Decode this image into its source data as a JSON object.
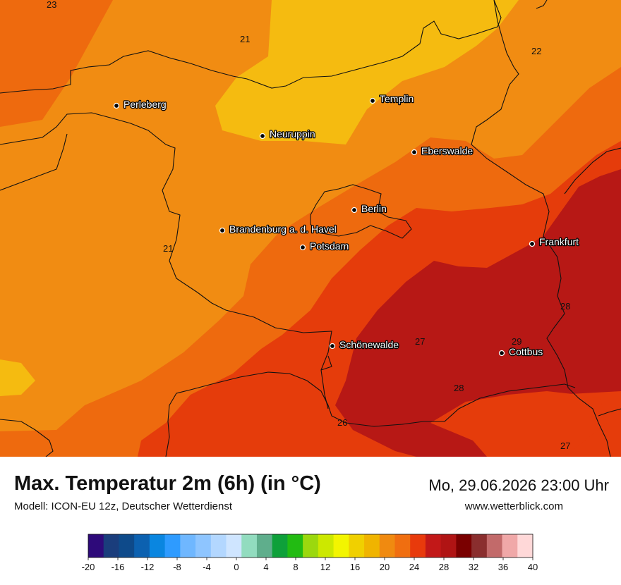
{
  "header": {
    "title": "Max. Temperatur 2m (6h) (in °C)",
    "model": "Modell: ICON-EU 12z, Deutscher Wetterdienst",
    "datetime": "Mo, 29.06.2026 23:00 Uhr",
    "website": "www.wetterblick.com"
  },
  "cities": [
    {
      "name": "Perleberg"
    },
    {
      "name": "Templin"
    },
    {
      "name": "Neuruppin"
    },
    {
      "name": "Eberswalde"
    },
    {
      "name": "Berlin"
    },
    {
      "name": "Brandenburg a. d. Havel"
    },
    {
      "name": "Potsdam"
    },
    {
      "name": "Frankfurt"
    },
    {
      "name": "Schönewalde"
    },
    {
      "name": "Cottbus"
    }
  ],
  "isotherm_labels": [
    "23",
    "21",
    "22",
    "21",
    "28",
    "27",
    "29",
    "28",
    "26",
    "27"
  ],
  "legend": {
    "ticks": [
      "-20",
      "-16",
      "-12",
      "-8",
      "-4",
      "0",
      "4",
      "8",
      "12",
      "16",
      "20",
      "24",
      "28",
      "32",
      "36",
      "40"
    ],
    "colors": [
      "#2e0a7a",
      "#1a3d7c",
      "#0e4a8a",
      "#0c61b0",
      "#0a86e0",
      "#2e9bff",
      "#6fb7ff",
      "#8ec5ff",
      "#b3d7ff",
      "#cfe5ff",
      "#92dcbf",
      "#5fae8c",
      "#0ea03a",
      "#22bb12",
      "#9bd80e",
      "#cce800",
      "#f3f500",
      "#f0d000",
      "#f0b400",
      "#f08a10",
      "#f06e10",
      "#e83a0c",
      "#c21818",
      "#b01414",
      "#7a0000",
      "#8a2e2e",
      "#c26a6a",
      "#f0a8a8",
      "#ffd8d8"
    ]
  },
  "map_colors": {
    "c20": "#f5bb10",
    "c22": "#f18c12",
    "c24": "#ee6a0e",
    "c26": "#e53c0b",
    "c28": "#b71815"
  }
}
